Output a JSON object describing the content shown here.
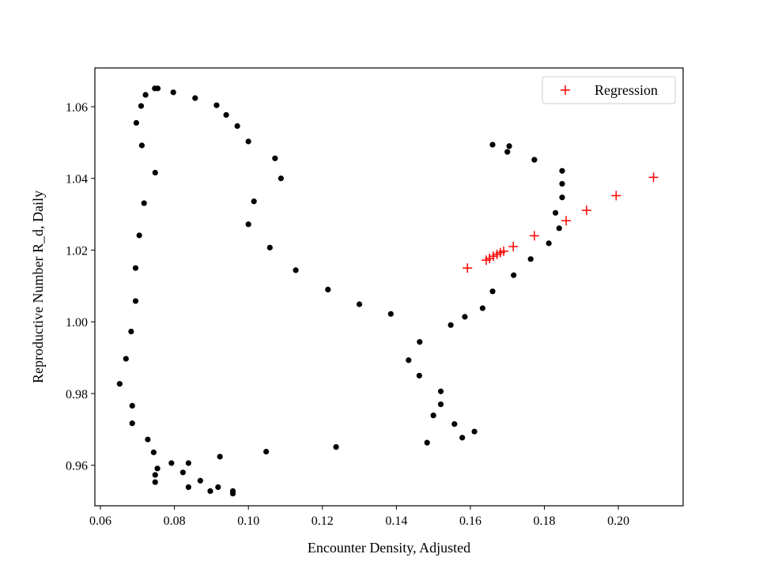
{
  "chart_data": {
    "type": "scatter",
    "title": "",
    "xlabel": "Encounter Density, Adjusted",
    "ylabel": "Reproductive Number R_d, Daily",
    "xlim": [
      0.0585,
      0.2175
    ],
    "ylim": [
      0.9487,
      1.0708
    ],
    "xticks": [
      0.06,
      0.08,
      0.1,
      0.12,
      0.14,
      0.16,
      0.18,
      0.2
    ],
    "xtick_labels": [
      "0.06",
      "0.08",
      "0.10",
      "0.12",
      "0.14",
      "0.16",
      "0.18",
      "0.20"
    ],
    "yticks": [
      0.96,
      0.98,
      1.0,
      1.02,
      1.04,
      1.06
    ],
    "ytick_labels": [
      "0.96",
      "0.98",
      "1.00",
      "1.02",
      "1.04",
      "1.06"
    ],
    "grid": false,
    "legend": {
      "position": "top-right",
      "entries": [
        "Regression"
      ]
    },
    "series": [
      {
        "marker": "dot",
        "color": "#000000",
        "points": [
          [
            0.0747,
            1.0651
          ],
          [
            0.0755,
            1.0651
          ],
          [
            0.0722,
            1.0633
          ],
          [
            0.071,
            1.0602
          ],
          [
            0.0697,
            1.0555
          ],
          [
            0.0712,
            1.0492
          ],
          [
            0.0748,
            1.0416
          ],
          [
            0.0718,
            1.0331
          ],
          [
            0.0705,
            1.0241
          ],
          [
            0.0695,
            1.015
          ],
          [
            0.0695,
            1.0058
          ],
          [
            0.0683,
            0.9973
          ],
          [
            0.0669,
            0.9897
          ],
          [
            0.0652,
            0.9827
          ],
          [
            0.0686,
            0.9766
          ],
          [
            0.0686,
            0.9717
          ],
          [
            0.0728,
            0.9672
          ],
          [
            0.0744,
            0.9636
          ],
          [
            0.0754,
            0.9591
          ],
          [
            0.0748,
            0.9573
          ],
          [
            0.0748,
            0.9553
          ],
          [
            0.0792,
            0.9606
          ],
          [
            0.0823,
            0.958
          ],
          [
            0.0838,
            0.9606
          ],
          [
            0.0838,
            0.9539
          ],
          [
            0.087,
            0.9557
          ],
          [
            0.0897,
            0.9528
          ],
          [
            0.0918,
            0.9539
          ],
          [
            0.0923,
            0.9624
          ],
          [
            0.0958,
            0.9528
          ],
          [
            0.0958,
            0.9521
          ],
          [
            0.0797,
            1.064
          ],
          [
            0.0856,
            1.0624
          ],
          [
            0.0914,
            1.0604
          ],
          [
            0.094,
            1.0577
          ],
          [
            0.097,
            1.0546
          ],
          [
            0.1,
            1.0503
          ],
          [
            0.1072,
            1.0456
          ],
          [
            0.1088,
            1.04
          ],
          [
            0.1015,
            1.0336
          ],
          [
            0.1,
            1.0272
          ],
          [
            0.1058,
            1.0207
          ],
          [
            0.1128,
            1.0144
          ],
          [
            0.1215,
            1.009
          ],
          [
            0.13,
            1.0049
          ],
          [
            0.1385,
            1.0022
          ],
          [
            0.1463,
            0.9944
          ],
          [
            0.1433,
            0.9893
          ],
          [
            0.1462,
            0.985
          ],
          [
            0.152,
            0.9806
          ],
          [
            0.152,
            0.977
          ],
          [
            0.15,
            0.9739
          ],
          [
            0.1557,
            0.9715
          ],
          [
            0.1578,
            0.9677
          ],
          [
            0.1611,
            0.9694
          ],
          [
            0.1483,
            0.9663
          ],
          [
            0.1237,
            0.9651
          ],
          [
            0.1048,
            0.9638
          ],
          [
            0.1547,
            0.9991
          ],
          [
            0.1585,
            1.0014
          ],
          [
            0.1633,
            1.0038
          ],
          [
            0.166,
            1.0085
          ],
          [
            0.1717,
            1.013
          ],
          [
            0.1763,
            1.0175
          ],
          [
            0.1812,
            1.0219
          ],
          [
            0.184,
            1.0261
          ],
          [
            0.183,
            1.0304
          ],
          [
            0.1848,
            1.0347
          ],
          [
            0.1848,
            1.0385
          ],
          [
            0.1848,
            1.0421
          ],
          [
            0.1773,
            1.0452
          ],
          [
            0.166,
            1.0494
          ],
          [
            0.17,
            1.0474
          ],
          [
            0.1705,
            1.049
          ]
        ]
      },
      {
        "name": "Regression",
        "marker": "plus",
        "color": "#ff0000",
        "points": [
          [
            0.1592,
            1.015
          ],
          [
            0.1643,
            1.0172
          ],
          [
            0.1652,
            1.0177
          ],
          [
            0.1662,
            1.0183
          ],
          [
            0.1672,
            1.0188
          ],
          [
            0.1681,
            1.0193
          ],
          [
            0.169,
            1.0197
          ],
          [
            0.1716,
            1.021
          ],
          [
            0.1773,
            1.024
          ],
          [
            0.1859,
            1.0282
          ],
          [
            0.1914,
            1.0311
          ],
          [
            0.1994,
            1.0352
          ],
          [
            0.2095,
            1.0403
          ]
        ]
      }
    ]
  }
}
